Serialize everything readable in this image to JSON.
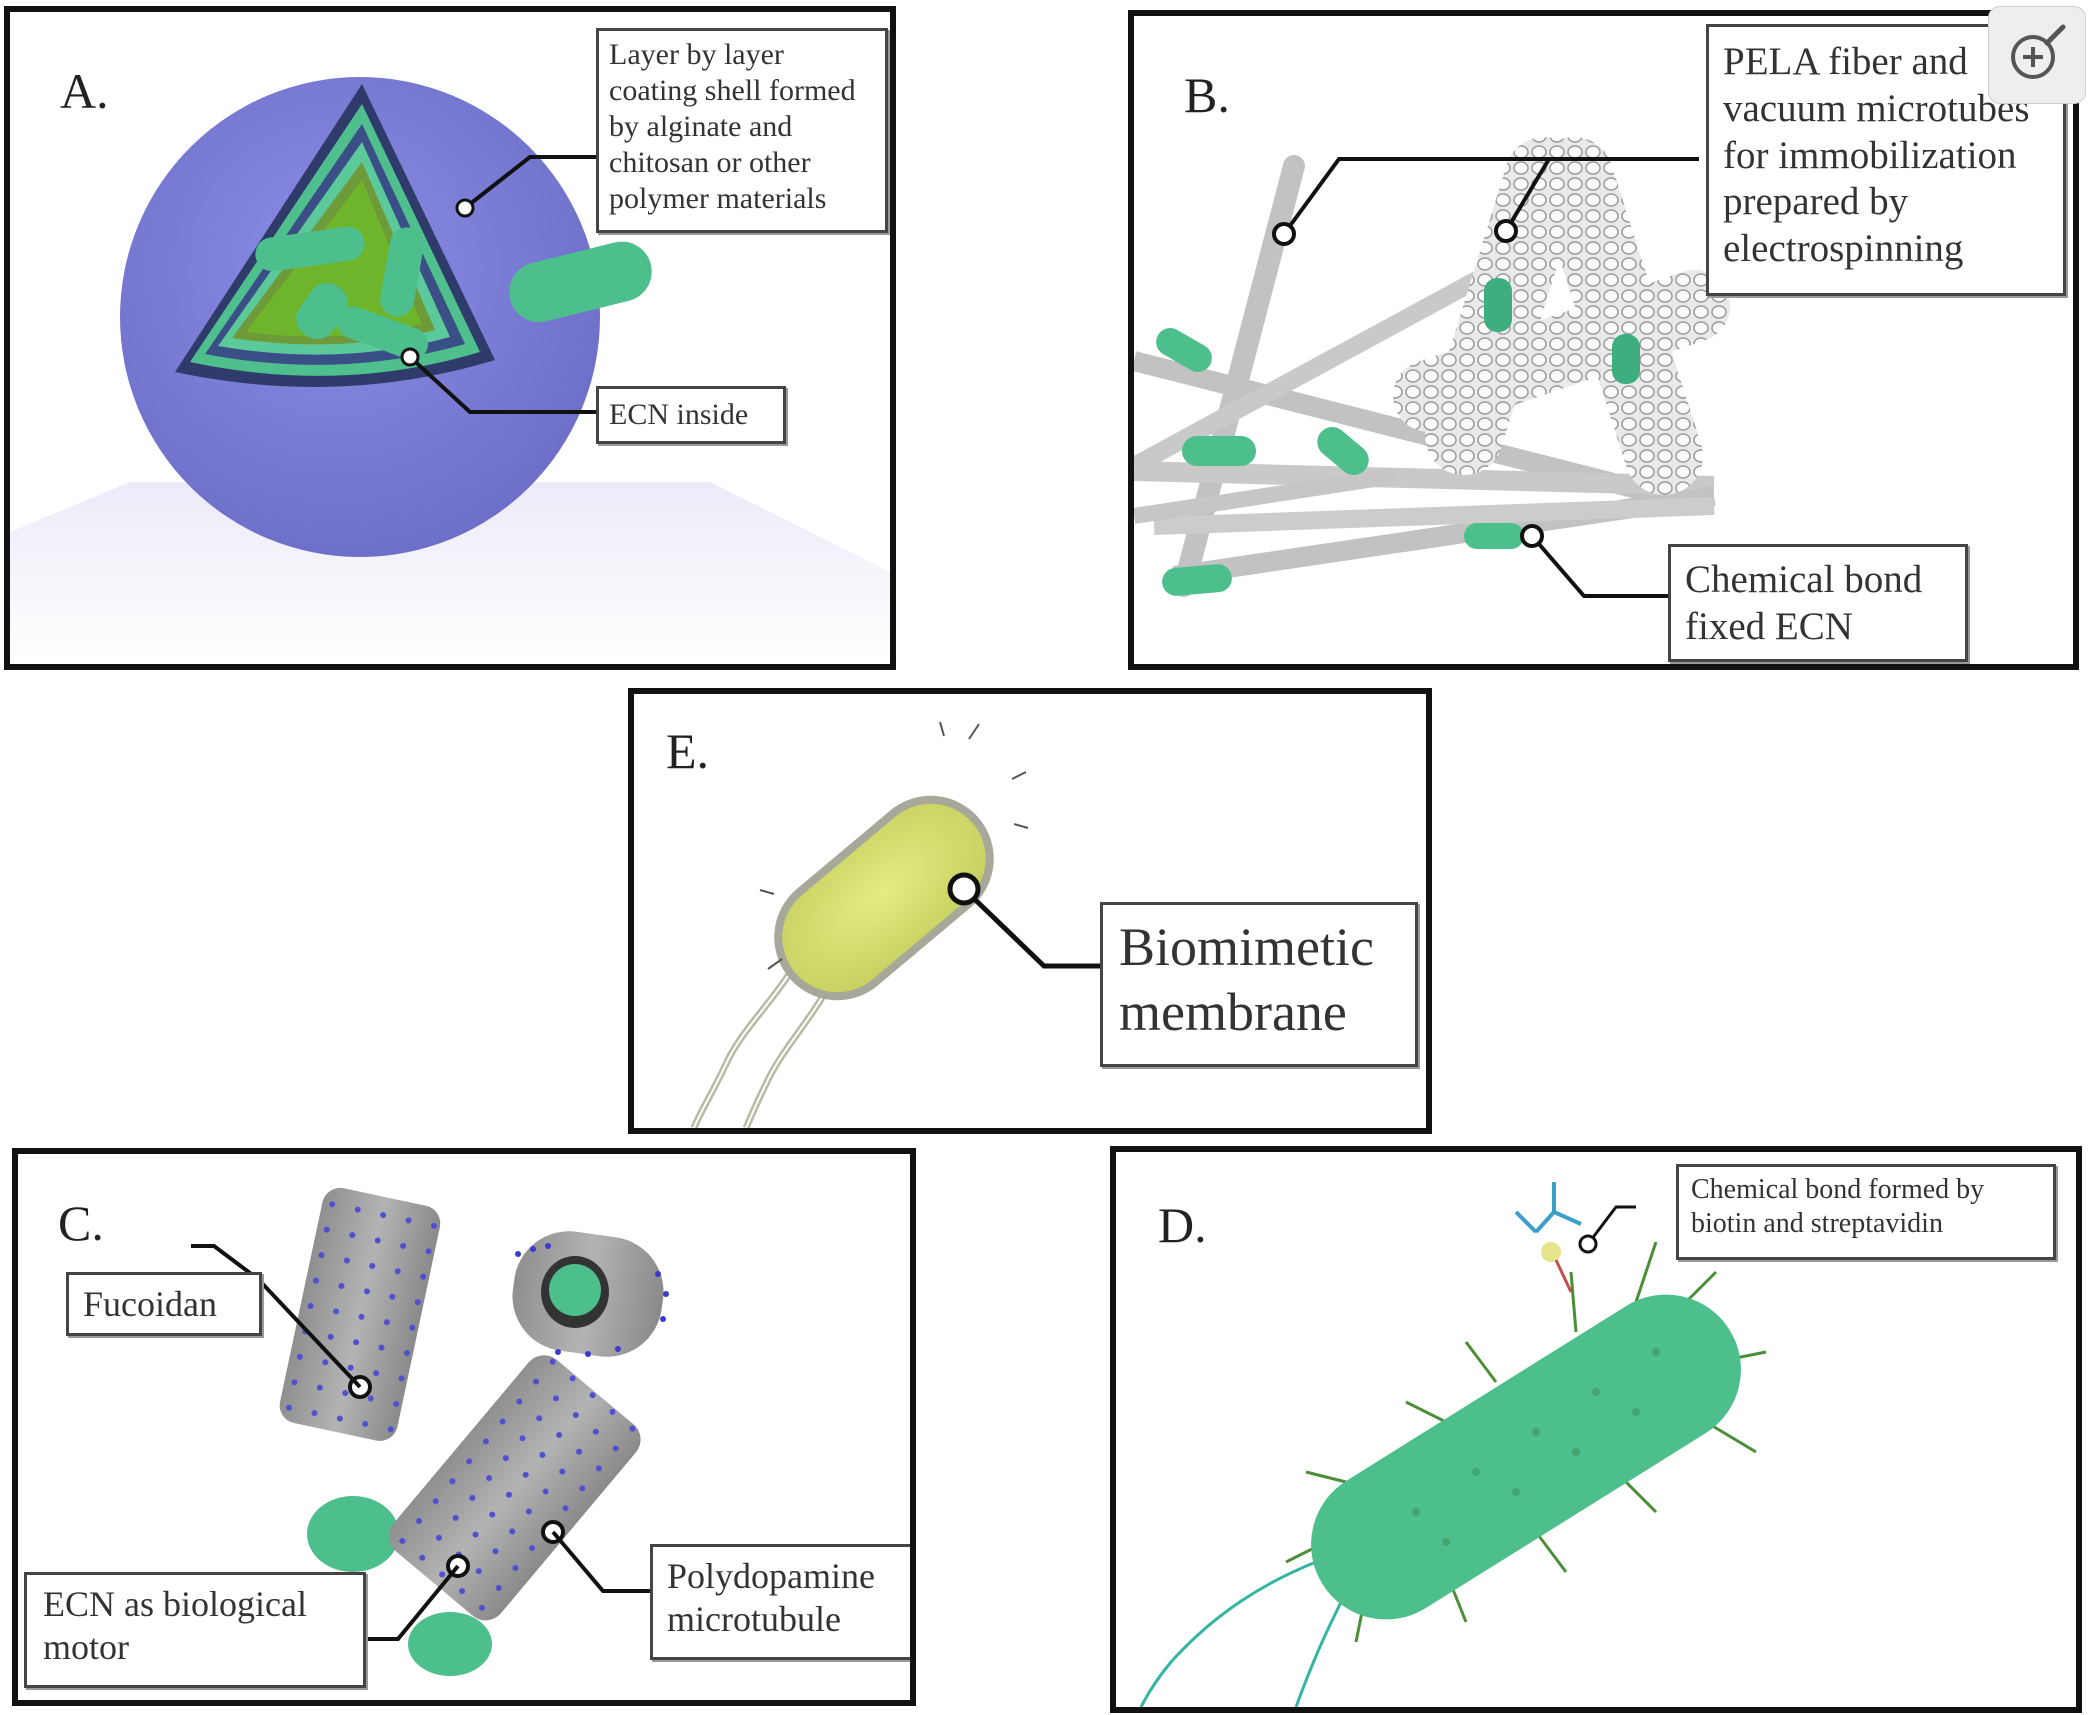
{
  "panels": {
    "a": {
      "label": "A.",
      "callout_shell": "Layer by layer coating shell formed by alginate and chitosan or other polymer materials",
      "callout_inside": "ECN inside"
    },
    "b": {
      "label": "B.",
      "callout_fiber": "PELA fiber and vacuum microtubes for immobilization prepared by electrospinning",
      "callout_bond": "Chemical bond fixed ECN"
    },
    "e": {
      "label": "E.",
      "callout_membrane": "Biomimetic membrane"
    },
    "c": {
      "label": "C.",
      "callout_fucoidan": "Fucoidan",
      "callout_motor": "ECN as biological motor",
      "callout_microtubule": "Polydopamine microtubule"
    },
    "d": {
      "label": "D.",
      "callout_biotin": "Chemical bond formed by biotin and streptavidin"
    }
  },
  "colors": {
    "bacteria_green": "#4dbf8c",
    "capsule_blue": "#7d7fd6",
    "membrane_yellow": "#d9e07a",
    "fiber_gray": "#bdbdbd",
    "frame": "#111111"
  },
  "icons": {
    "zoom": "zoom-in-icon"
  }
}
